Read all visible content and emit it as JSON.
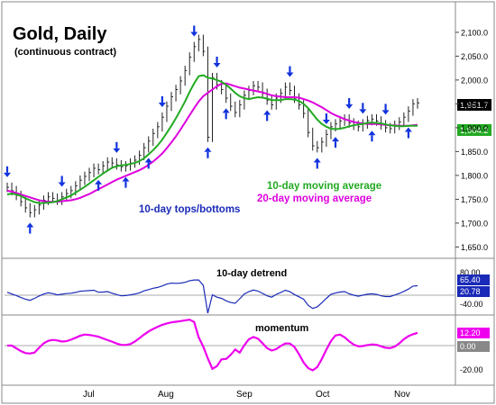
{
  "chart_data": {
    "type": "line",
    "title": "Gold, Daily",
    "subtitle": "(continuous contract)",
    "x_tick_labels": [
      "Jul",
      "Aug",
      "Sep",
      "Oct",
      "Nov"
    ],
    "price_panel": {
      "y_ticks": [
        "2,100.0",
        "2,050.0",
        "2,000.0",
        "1,950.0",
        "1,900.0",
        "1,850.0",
        "1,800.0",
        "1,750.0",
        "1,700.0",
        "1,650.0"
      ],
      "ylim": [
        1630,
        2130
      ],
      "last_price_label": "1,951.7",
      "ma_label_value": "1,904.2",
      "annotations": {
        "ma10": "10-day moving average",
        "ma20": "20-day moving average",
        "cycles": "10-day tops/bottoms"
      },
      "price_closes": [
        1775,
        1768,
        1758,
        1745,
        1732,
        1722,
        1728,
        1738,
        1748,
        1755,
        1752,
        1748,
        1755,
        1762,
        1768,
        1778,
        1790,
        1798,
        1806,
        1815,
        1812,
        1820,
        1828,
        1826,
        1822,
        1818,
        1820,
        1826,
        1832,
        1842,
        1858,
        1872,
        1888,
        1902,
        1922,
        1945,
        1965,
        1980,
        1998,
        2020,
        2048,
        2070,
        2085,
        2060,
        1880,
        2005,
        1990,
        1980,
        1962,
        1945,
        1932,
        1948,
        1968,
        1978,
        1988,
        1985,
        1972,
        1958,
        1948,
        1962,
        1972,
        1985,
        1978,
        1962,
        1948,
        1930,
        1890,
        1862,
        1858,
        1870,
        1886,
        1902,
        1908,
        1914,
        1918,
        1910,
        1905,
        1902,
        1908,
        1915,
        1918,
        1914,
        1906,
        1900,
        1898,
        1905,
        1912,
        1922,
        1935,
        1950,
        1952
      ],
      "ma10": [
        1760,
        1762,
        1760,
        1757,
        1752,
        1748,
        1744,
        1742,
        1742,
        1743,
        1744,
        1746,
        1750,
        1754,
        1758,
        1764,
        1770,
        1776,
        1783,
        1790,
        1797,
        1804,
        1810,
        1816,
        1819,
        1821,
        1822,
        1824,
        1826,
        1830,
        1836,
        1844,
        1853,
        1863,
        1875,
        1889,
        1904,
        1920,
        1937,
        1955,
        1975,
        1993,
        2008,
        2010,
        2005,
        2003,
        2000,
        1996,
        1990,
        1982,
        1973,
        1966,
        1962,
        1960,
        1962,
        1964,
        1963,
        1961,
        1958,
        1958,
        1958,
        1960,
        1960,
        1959,
        1956,
        1950,
        1941,
        1929,
        1917,
        1908,
        1902,
        1898,
        1897,
        1898,
        1900,
        1903,
        1905,
        1907,
        1908,
        1910,
        1911,
        1910,
        1909,
        1907,
        1905,
        1904,
        1903,
        1903,
        1904,
        1904,
        1904.2
      ],
      "ma20": [
        1768,
        1766,
        1763,
        1760,
        1757,
        1754,
        1751,
        1748,
        1746,
        1745,
        1745,
        1745,
        1746,
        1747,
        1748,
        1750,
        1753,
        1757,
        1761,
        1766,
        1771,
        1776,
        1781,
        1786,
        1791,
        1795,
        1799,
        1803,
        1807,
        1811,
        1816,
        1822,
        1829,
        1837,
        1846,
        1857,
        1869,
        1882,
        1896,
        1911,
        1926,
        1941,
        1955,
        1966,
        1973,
        1980,
        1987,
        1992,
        1993,
        1990,
        1987,
        1984,
        1982,
        1980,
        1978,
        1976,
        1974,
        1971,
        1968,
        1966,
        1965,
        1964,
        1964,
        1964,
        1963,
        1960,
        1957,
        1953,
        1948,
        1943,
        1937,
        1931,
        1926,
        1922,
        1918,
        1915,
        1912,
        1910,
        1909,
        1908,
        1908,
        1908,
        1907,
        1906,
        1905,
        1905,
        1904,
        1904,
        1904,
        1905,
        1906
      ],
      "tops_day_index": [
        0,
        12,
        24,
        34,
        41,
        46,
        62,
        70,
        75,
        78,
        83
      ],
      "bottoms_day_index": [
        5,
        20,
        26,
        31,
        44,
        48,
        57,
        68,
        72,
        80,
        88
      ]
    },
    "detrend_panel": {
      "label": "10-day detrend",
      "y_ticks": [
        "80.00",
        "-40.00"
      ],
      "value_labels": [
        "65.40",
        "20.78"
      ]
    },
    "momentum_panel": {
      "label": "momentum",
      "y_ticks": [
        "-20.00"
      ],
      "value_labels": [
        "12.20",
        "0.00"
      ]
    },
    "colors": {
      "price_bars": "#222222",
      "ma10": "#22aa22",
      "ma20": "#dd00dd",
      "arrows": "#1133dd",
      "cycle_label": "#1a2ab8",
      "momentum": "#ee00ee",
      "detrend": "#1a2ab8",
      "last_price_box": "#000000",
      "ma_box": "#22aa22",
      "detrend_box": "#1a2ab8",
      "momentum_box": "#ee00ee",
      "zero_box": "#888888"
    }
  }
}
